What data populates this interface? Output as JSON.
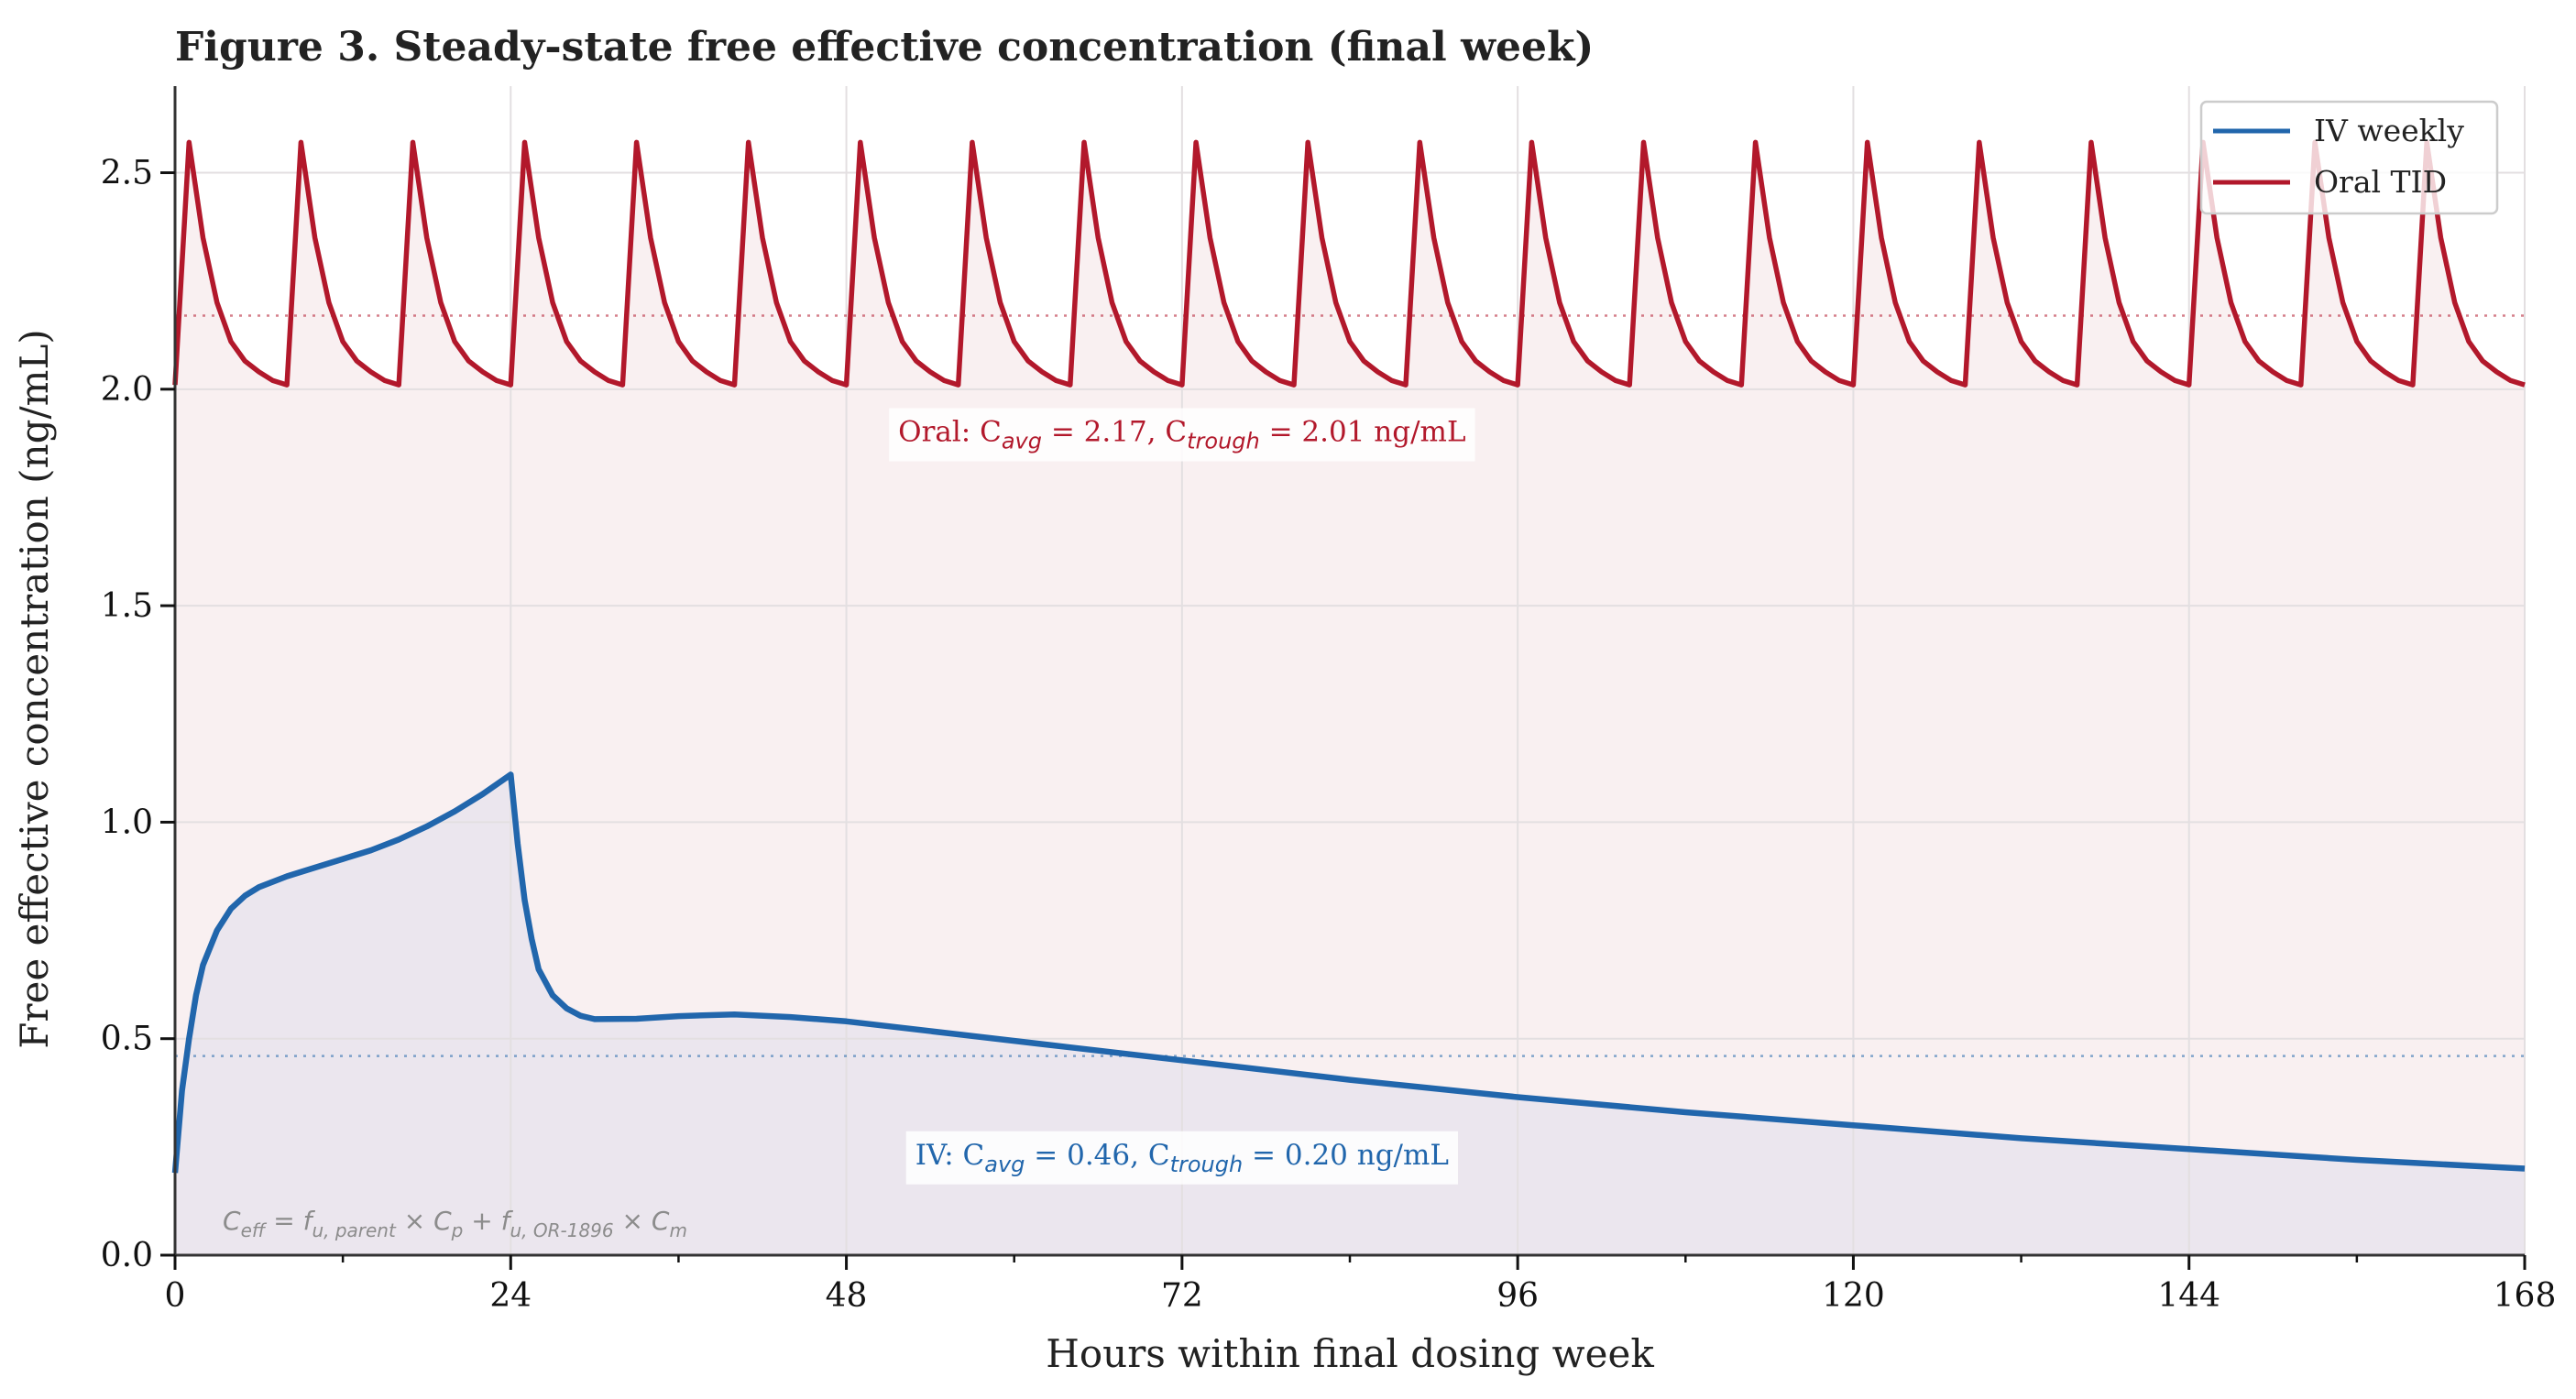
{
  "chart_data": {
    "type": "line",
    "title": "Figure 3.  Steady-state free effective concentration (final week)",
    "xlabel": "Hours within final dosing week",
    "ylabel": "Free effective concentration (ng/mL)",
    "xlim": [
      0,
      168
    ],
    "ylim": [
      0,
      2.7
    ],
    "xticks": [
      0,
      24,
      48,
      72,
      96,
      120,
      144,
      168
    ],
    "xminor_ticks": [
      12,
      36,
      60,
      84,
      108,
      132,
      156
    ],
    "yticks": [
      0.0,
      0.5,
      1.0,
      1.5,
      2.0,
      2.5
    ],
    "ytick_labels": [
      "0.0",
      "0.5",
      "1.0",
      "1.5",
      "2.0",
      "2.5"
    ],
    "grid": true,
    "legend": {
      "position": "top-right",
      "entries": [
        "IV weekly",
        "Oral TID"
      ]
    },
    "series": [
      {
        "name": "IV weekly",
        "color": "#2166ac",
        "fill": true,
        "x": [
          0,
          0.5,
          1,
          1.5,
          2,
          3,
          4,
          5,
          6,
          8,
          10,
          12,
          14,
          16,
          18,
          20,
          22,
          24,
          24.5,
          25,
          25.5,
          26,
          27,
          28,
          29,
          30,
          33,
          36,
          40,
          44,
          48,
          56,
          64,
          72,
          84,
          96,
          108,
          120,
          132,
          144,
          156,
          168
        ],
        "y": [
          0.19,
          0.38,
          0.5,
          0.6,
          0.67,
          0.75,
          0.8,
          0.83,
          0.85,
          0.875,
          0.895,
          0.915,
          0.935,
          0.96,
          0.99,
          1.025,
          1.065,
          1.11,
          0.95,
          0.82,
          0.73,
          0.66,
          0.6,
          0.57,
          0.553,
          0.545,
          0.546,
          0.552,
          0.556,
          0.55,
          0.54,
          0.51,
          0.48,
          0.45,
          0.405,
          0.365,
          0.33,
          0.3,
          0.27,
          0.245,
          0.22,
          0.2
        ]
      },
      {
        "name": "Oral TID",
        "color": "#b2182b",
        "fill": true,
        "dosing_interval_h": 8,
        "cycles": 21,
        "cycle_profile_hourly": [
          2.01,
          2.57,
          2.35,
          2.2,
          2.11,
          2.065,
          2.04,
          2.02,
          2.01
        ]
      }
    ],
    "reference_lines": [
      {
        "series": "Oral TID",
        "label": "Oral Cavg",
        "y": 2.17,
        "style": "dotted"
      },
      {
        "series": "IV weekly",
        "label": "IV Cavg",
        "y": 0.46,
        "style": "dotted"
      }
    ],
    "annotations": [
      {
        "series": "Oral TID",
        "x": 72,
        "y": 1.88,
        "parts": [
          "Oral:  C",
          "avg",
          " = 2.17,  C",
          "trough",
          " = 2.01 ng/mL"
        ]
      },
      {
        "series": "IV weekly",
        "x": 72,
        "y": 0.21,
        "parts": [
          "IV:  C",
          "avg",
          " = 0.46,  C",
          "trough",
          " = 0.20 ng/mL"
        ]
      },
      {
        "id": "formula",
        "parts": [
          "C",
          "eff",
          " = f",
          "u, parent",
          " × C",
          "p",
          "  +  f",
          "u, OR-1896",
          " × C",
          "m"
        ]
      }
    ],
    "summary": {
      "oral": {
        "Cavg": 2.17,
        "Ctrough": 2.01,
        "unit": "ng/mL"
      },
      "iv": {
        "Cavg": 0.46,
        "Ctrough": 0.2,
        "unit": "ng/mL"
      }
    }
  },
  "colors": {
    "iv": "#2166ac",
    "oral": "#b2182b",
    "iv_fill": "#ebe6ee",
    "oral_fill": "#f9f0f1"
  }
}
